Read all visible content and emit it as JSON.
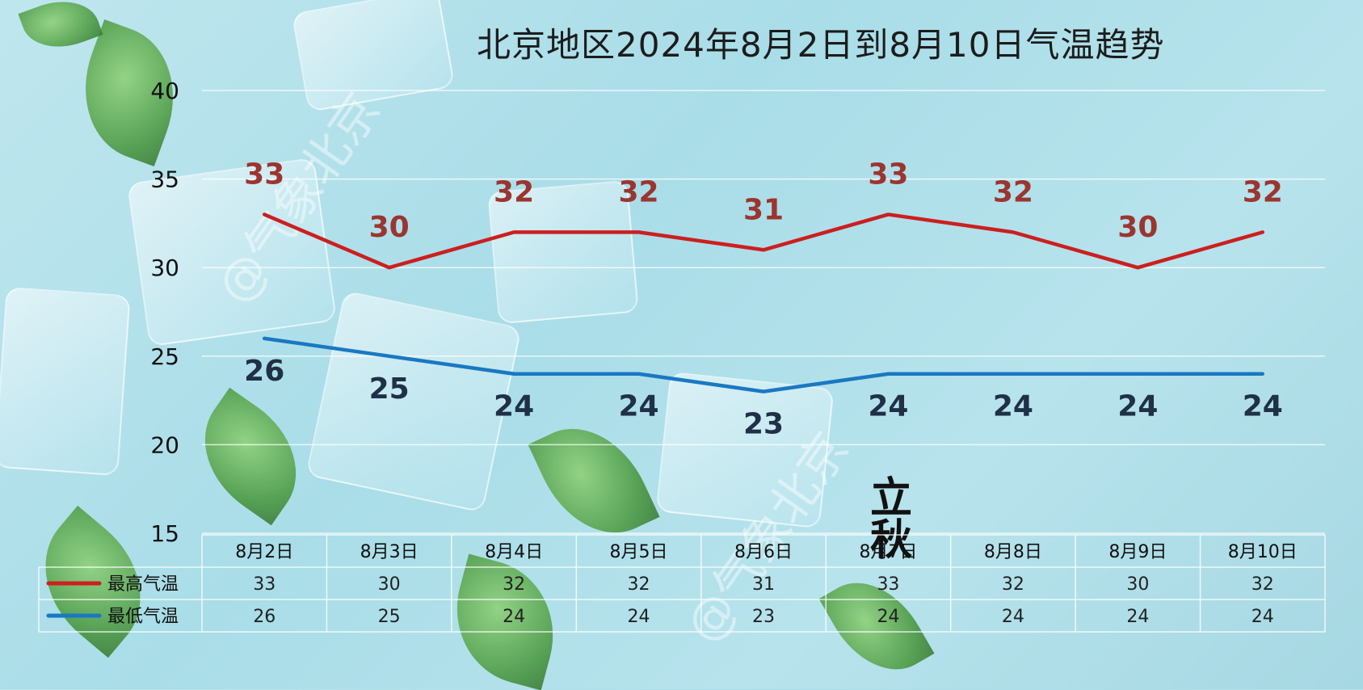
{
  "title": "北京地区2024年8月2日到8月10日气温趋势",
  "watermark": "@气象北京",
  "seal": "立秋",
  "chart_data": {
    "type": "line",
    "title": "北京地区2024年8月2日到8月10日气温趋势",
    "categories": [
      "8月2日",
      "8月3日",
      "8月4日",
      "8月5日",
      "8月6日",
      "8月7日",
      "8月8日",
      "8月9日",
      "8月10日"
    ],
    "series": [
      {
        "name": "最高气温",
        "values": [
          33,
          30,
          32,
          32,
          31,
          33,
          32,
          30,
          32
        ],
        "color": "#cc1f1f",
        "label_color": "#9b3530"
      },
      {
        "name": "最低气温",
        "values": [
          26,
          25,
          24,
          24,
          23,
          24,
          24,
          24,
          24
        ],
        "color": "#1a78c2",
        "label_color": "#1f3047"
      }
    ],
    "ylim": [
      15,
      40
    ],
    "yticks": [
      15,
      20,
      25,
      30,
      35,
      40
    ],
    "grid": true,
    "data_table": true,
    "xlabel": "",
    "ylabel": ""
  }
}
